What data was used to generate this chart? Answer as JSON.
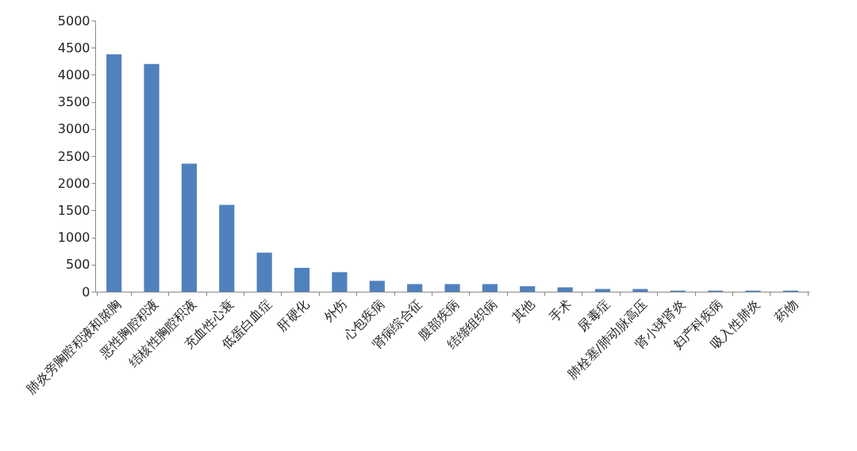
{
  "chart_data": {
    "type": "bar",
    "categories": [
      "肺炎旁胸腔积液和脓胸",
      "恶性胸腔积液",
      "结核性胸腔积液",
      "充血性心衰",
      "低蛋白血症",
      "肝硬化",
      "外伤",
      "心包疾病",
      "肾病综合征",
      "腹部疾病",
      "结缔组织病",
      "其他",
      "手术",
      "尿毒症",
      "肺栓塞/肺动脉高压",
      "肾小球肾炎",
      "妇产科疾病",
      "吸入性肺炎",
      "药物"
    ],
    "values": [
      4380,
      4200,
      2360,
      1600,
      720,
      440,
      360,
      200,
      140,
      140,
      140,
      100,
      80,
      50,
      50,
      20,
      20,
      20,
      20
    ],
    "color": "#4f81bd",
    "ylim": [
      0,
      5000
    ],
    "yticks": [
      0,
      500,
      1000,
      1500,
      2000,
      2500,
      3000,
      3500,
      4000,
      4500,
      5000
    ],
    "grid": false
  }
}
